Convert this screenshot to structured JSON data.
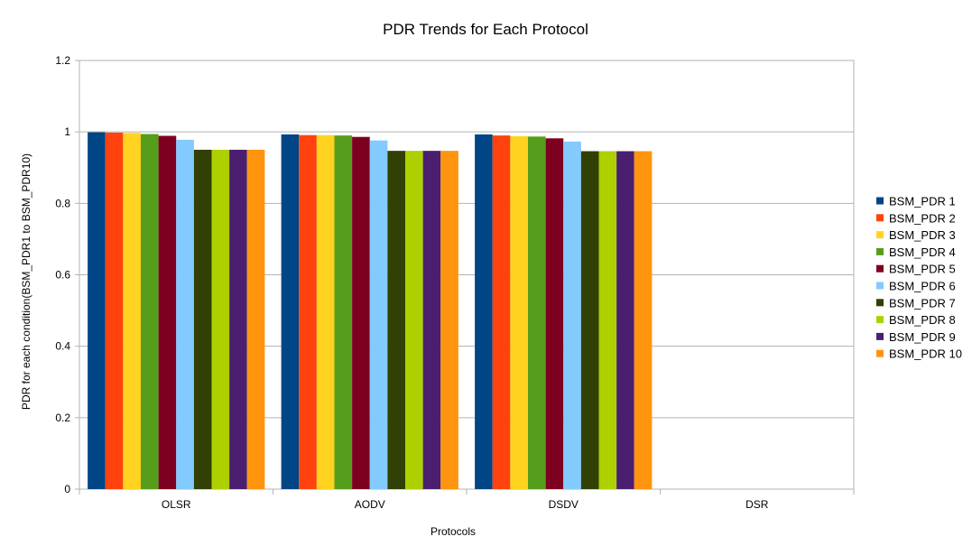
{
  "chart_data": {
    "type": "bar",
    "title": "PDR Trends for Each Protocol",
    "xlabel": "Protocols",
    "ylabel": "PDR for each condition(BSM_PDR1 to BSM_PDR10)",
    "categories": [
      "OLSR",
      "AODV",
      "DSDV",
      "DSR"
    ],
    "ylim": [
      0,
      1.2
    ],
    "yticks": [
      "0",
      "0.2",
      "0.4",
      "0.6",
      "0.8",
      "1",
      "1.2"
    ],
    "grid": true,
    "legend_position": "right",
    "series": [
      {
        "name": "BSM_PDR 1",
        "color": "#004586",
        "values": [
          0.999,
          0.993,
          0.993,
          null
        ]
      },
      {
        "name": "BSM_PDR 2",
        "color": "#ff420e",
        "values": [
          0.998,
          0.991,
          0.99,
          null
        ]
      },
      {
        "name": "BSM_PDR 3",
        "color": "#ffd320",
        "values": [
          0.997,
          0.991,
          0.988,
          null
        ]
      },
      {
        "name": "BSM_PDR 4",
        "color": "#579d1c",
        "values": [
          0.994,
          0.99,
          0.987,
          null
        ]
      },
      {
        "name": "BSM_PDR 5",
        "color": "#7e0021",
        "values": [
          0.989,
          0.986,
          0.982,
          null
        ]
      },
      {
        "name": "BSM_PDR 6",
        "color": "#83caff",
        "values": [
          0.978,
          0.976,
          0.973,
          null
        ]
      },
      {
        "name": "BSM_PDR 7",
        "color": "#314004",
        "values": [
          0.95,
          0.947,
          0.946,
          null
        ]
      },
      {
        "name": "BSM_PDR 8",
        "color": "#aecf00",
        "values": [
          0.95,
          0.947,
          0.946,
          null
        ]
      },
      {
        "name": "BSM_PDR 9",
        "color": "#4b1f6f",
        "values": [
          0.95,
          0.947,
          0.946,
          null
        ]
      },
      {
        "name": "BSM_PDR 10",
        "color": "#ff950e",
        "values": [
          0.95,
          0.947,
          0.946,
          null
        ]
      }
    ]
  }
}
